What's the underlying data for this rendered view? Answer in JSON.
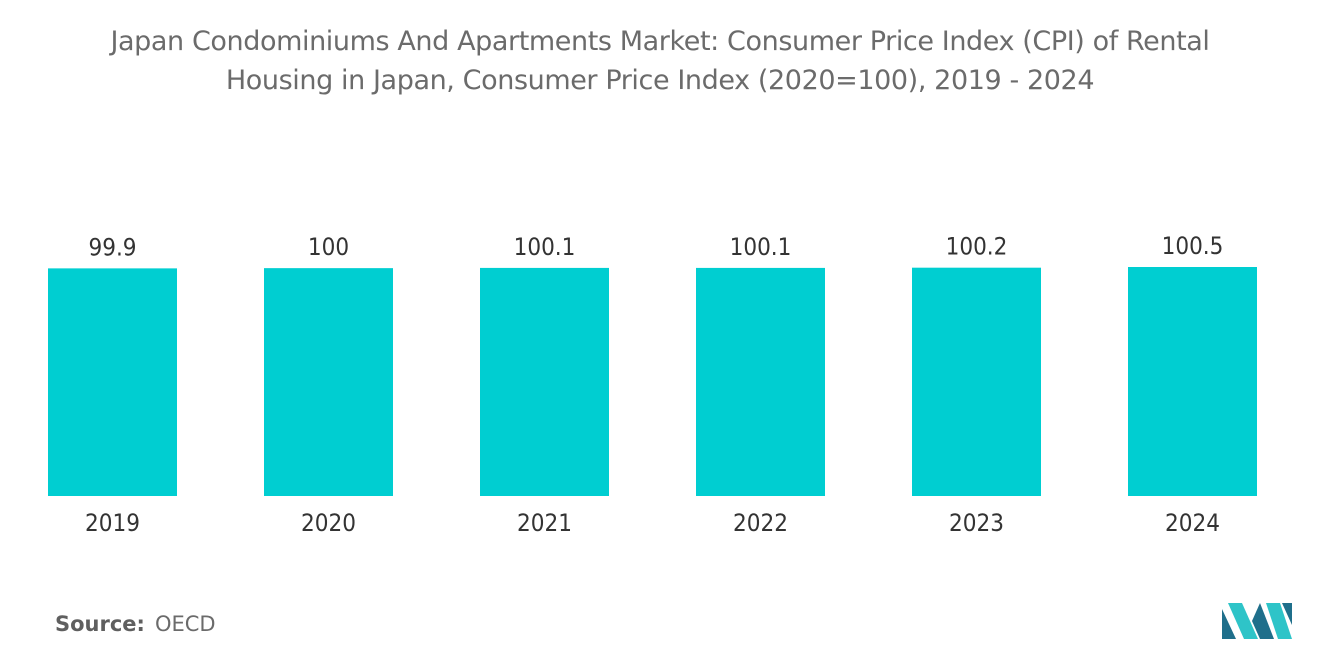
{
  "title": {
    "line1": "Japan Condominiums And Apartments Market: Consumer Price Index (CPI) of Rental",
    "line2": "Housing in Japan, Consumer Price Index (2020=100), 2019 - 2024"
  },
  "source": {
    "label": "Source:",
    "value": "OECD"
  },
  "colors": {
    "bar": "#00CED1",
    "text": "#333333",
    "title": "#6b6b6b",
    "logo_dark": "#1f6f8b",
    "logo_light": "#2ec4c8"
  },
  "chart_data": {
    "type": "bar",
    "title": "Japan Condominiums And Apartments Market: Consumer Price Index (CPI) of Rental Housing in Japan, Consumer Price Index (2020=100), 2019 - 2024",
    "categories": [
      "2019",
      "2020",
      "2021",
      "2022",
      "2023",
      "2024"
    ],
    "values": [
      99.9,
      100,
      100.1,
      100.1,
      100.2,
      100.5
    ],
    "value_labels": [
      "99.9",
      "100",
      "100.1",
      "100.1",
      "100.2",
      "100.5"
    ],
    "xlabel": "",
    "ylabel": "",
    "ylim": [
      0,
      100.5
    ],
    "grid": false,
    "legend": "none"
  }
}
